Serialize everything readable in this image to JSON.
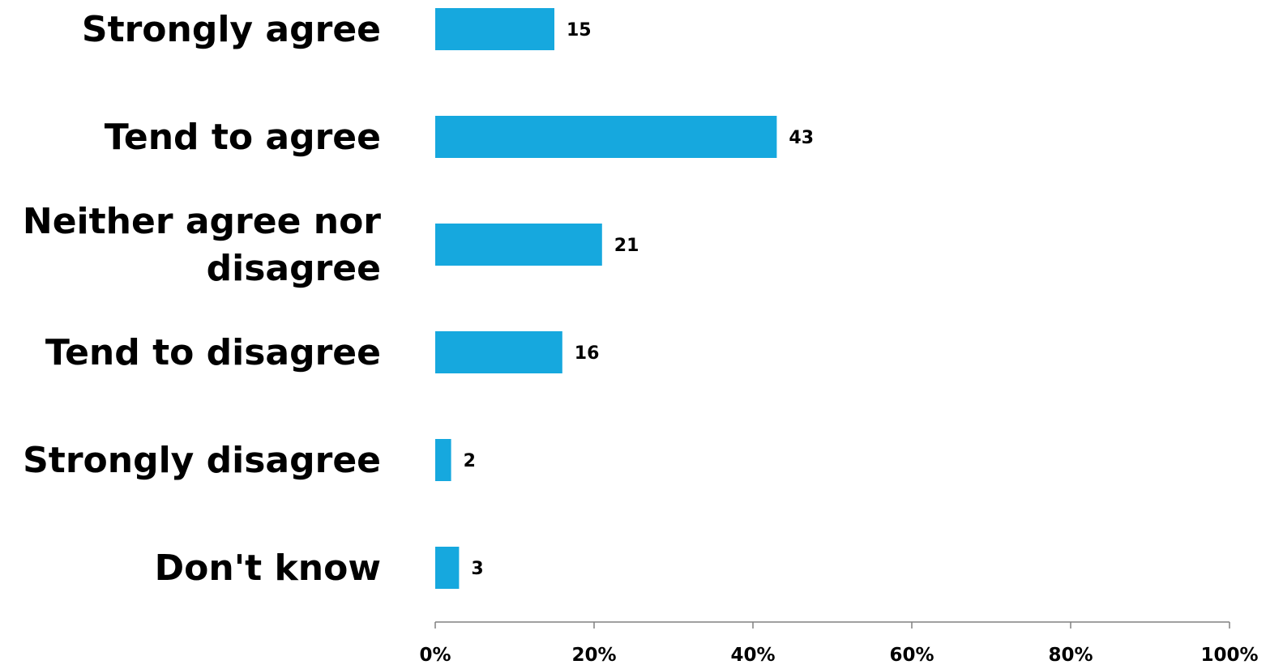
{
  "chart_data": {
    "type": "bar",
    "orientation": "horizontal",
    "categories": [
      [
        "Strongly agree"
      ],
      [
        "Tend to agree"
      ],
      [
        "Neither agree nor",
        "disagree"
      ],
      [
        "Tend to disagree"
      ],
      [
        "Strongly disagree"
      ],
      [
        "Don't know"
      ]
    ],
    "values": [
      15,
      43,
      21,
      16,
      2,
      3
    ],
    "value_labels": [
      "15",
      "43",
      "21",
      "16",
      "2",
      "3"
    ],
    "xlim": [
      0,
      100
    ],
    "x_ticks": [
      0,
      20,
      40,
      60,
      80,
      100
    ],
    "x_tick_labels": [
      "0%",
      "20%",
      "40%",
      "60%",
      "80%",
      "100%"
    ],
    "bar_color": "#16A8DE",
    "grid": false,
    "legend": "none"
  }
}
